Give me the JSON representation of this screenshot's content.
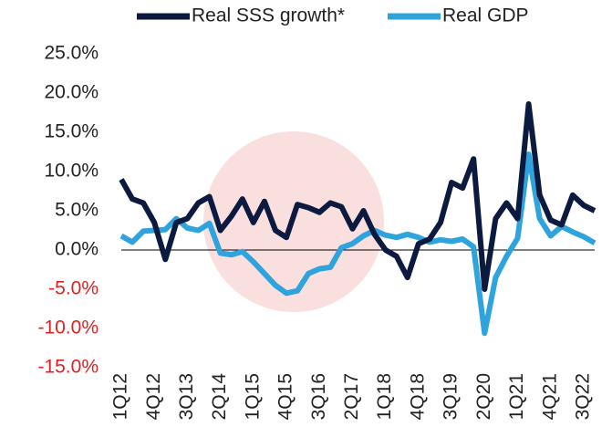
{
  "chart_data": {
    "type": "line",
    "categories": [
      "1Q12",
      null,
      null,
      "4Q12",
      null,
      null,
      "3Q13",
      null,
      null,
      "2Q14",
      null,
      null,
      "1Q15",
      null,
      null,
      "4Q15",
      null,
      null,
      "3Q16",
      null,
      null,
      "2Q17",
      null,
      null,
      "1Q18",
      null,
      null,
      "4Q18",
      null,
      null,
      "3Q19",
      null,
      null,
      "2Q20",
      null,
      null,
      "1Q21",
      null,
      null,
      "4Q21",
      null,
      null,
      "3Q22",
      null
    ],
    "series": [
      {
        "name": "Real SSS growth*",
        "color": "#0d1a40",
        "values": [
          9.0,
          6.5,
          6.0,
          3.5,
          -1.2,
          3.5,
          4.0,
          6.0,
          6.8,
          2.5,
          4.3,
          6.5,
          3.5,
          6.2,
          2.5,
          1.6,
          5.8,
          5.4,
          4.8,
          6.0,
          5.5,
          2.7,
          5.0,
          2.0,
          0.0,
          -0.8,
          -3.5,
          0.8,
          1.4,
          3.5,
          8.6,
          7.9,
          11.6,
          -5.0,
          4.0,
          6.0,
          4.0,
          18.6,
          7.0,
          3.8,
          3.2,
          7.0,
          5.7,
          5.0
        ]
      },
      {
        "name": "Real GDP",
        "color": "#2ea3dc",
        "values": [
          1.8,
          1.0,
          2.4,
          2.5,
          2.6,
          4.0,
          2.8,
          2.5,
          3.4,
          -0.4,
          -0.6,
          -0.2,
          -1.5,
          -3.0,
          -4.5,
          -5.5,
          -5.2,
          -3.0,
          -2.4,
          -2.2,
          0.3,
          0.8,
          1.8,
          2.5,
          1.9,
          1.6,
          2.0,
          1.6,
          1.0,
          1.3,
          1.1,
          1.4,
          0.4,
          -10.6,
          -3.5,
          -0.8,
          1.5,
          12.2,
          4.0,
          1.8,
          3.0,
          2.3,
          1.7,
          0.9
        ]
      }
    ],
    "ylim": [
      -15,
      25
    ],
    "yticks": [
      {
        "value": -15,
        "label": "-15.0%"
      },
      {
        "value": -10,
        "label": "-10.0%"
      },
      {
        "value": -5,
        "label": "-5.0%"
      },
      {
        "value": 0,
        "label": "0.0%"
      },
      {
        "value": 5,
        "label": "5.0%"
      },
      {
        "value": 10,
        "label": "10.0%"
      },
      {
        "value": 15,
        "label": "15.0%"
      },
      {
        "value": 20,
        "label": "20.0%"
      },
      {
        "value": 25,
        "label": "25.0%"
      }
    ],
    "negative_tick_color": "#e02020",
    "legend": "top"
  }
}
